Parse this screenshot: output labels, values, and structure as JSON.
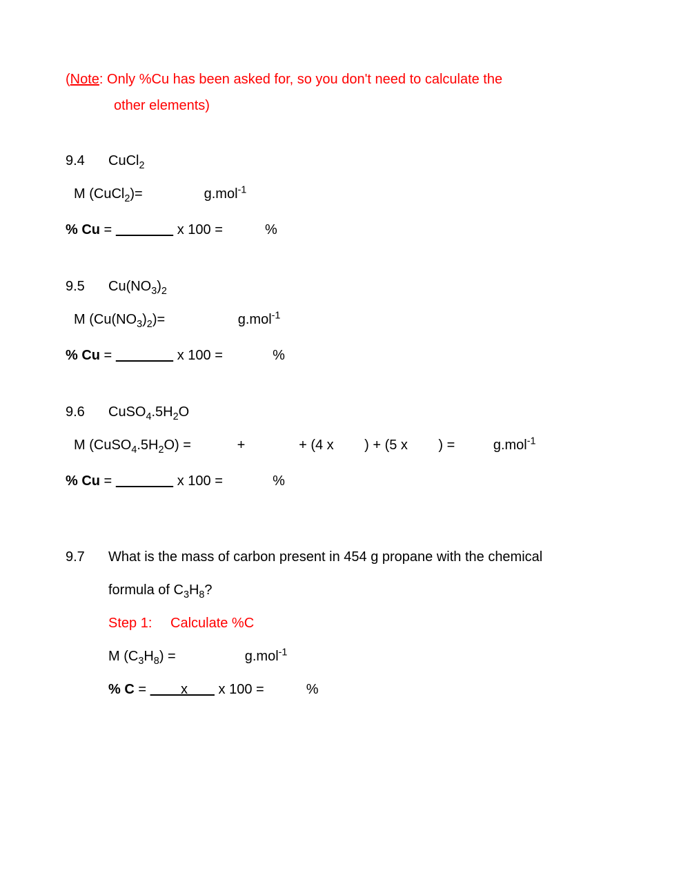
{
  "note": {
    "label": "Note",
    "text1": ": Only %Cu has been asked for, so you don't need to calculate the",
    "text2": "other elements)"
  },
  "p94": {
    "num": "9.4",
    "formula_html": "CuCl<sub>2</sub>",
    "molar_html": "M (CuCl<sub>2</sub>)=                g.mol<sup>-1</sup>",
    "pcu_html": "<b>% Cu</b> = <span class=\"underline\">               </span> x 100 =           %"
  },
  "p95": {
    "num": "9.5",
    "formula_html": "Cu(NO<sub>3</sub>)<sub>2</sub>",
    "molar_html": "M (Cu(NO<sub>3</sub>)<sub>2</sub>)=                   g.mol<sup>-1</sup>",
    "pcu_html": "<b>% Cu</b> = <span class=\"underline\">               </span> x 100 =             %"
  },
  "p96": {
    "num": "9.6",
    "formula_html": "CuSO<sub>4</sub>.5H<sub>2</sub>O",
    "molar_html": "M (CuSO<sub>4</sub>.5H<sub>2</sub>O) =            +              + (4 x        ) + (5 x        ) =          g.mol<sup>-1</sup>",
    "pcu_html": "<b>% Cu</b> = <span class=\"underline\">               </span> x 100 =             %"
  },
  "p97": {
    "num": "9.7",
    "q_line1": "What is the mass of carbon present in 454 g propane with the chemical",
    "q_line2_html": "formula of C<sub>3</sub>H<sub>8</sub>?",
    "step_label": "Step 1:",
    "step_text": "Calculate %C",
    "molar_html": "M (C<sub>3</sub>H<sub>8</sub>) =                  g.mol<sup>-1</sup>",
    "pc_html": "<b>% C</b> = <span class=\"underline\">        x       </span> x 100 =           %"
  }
}
